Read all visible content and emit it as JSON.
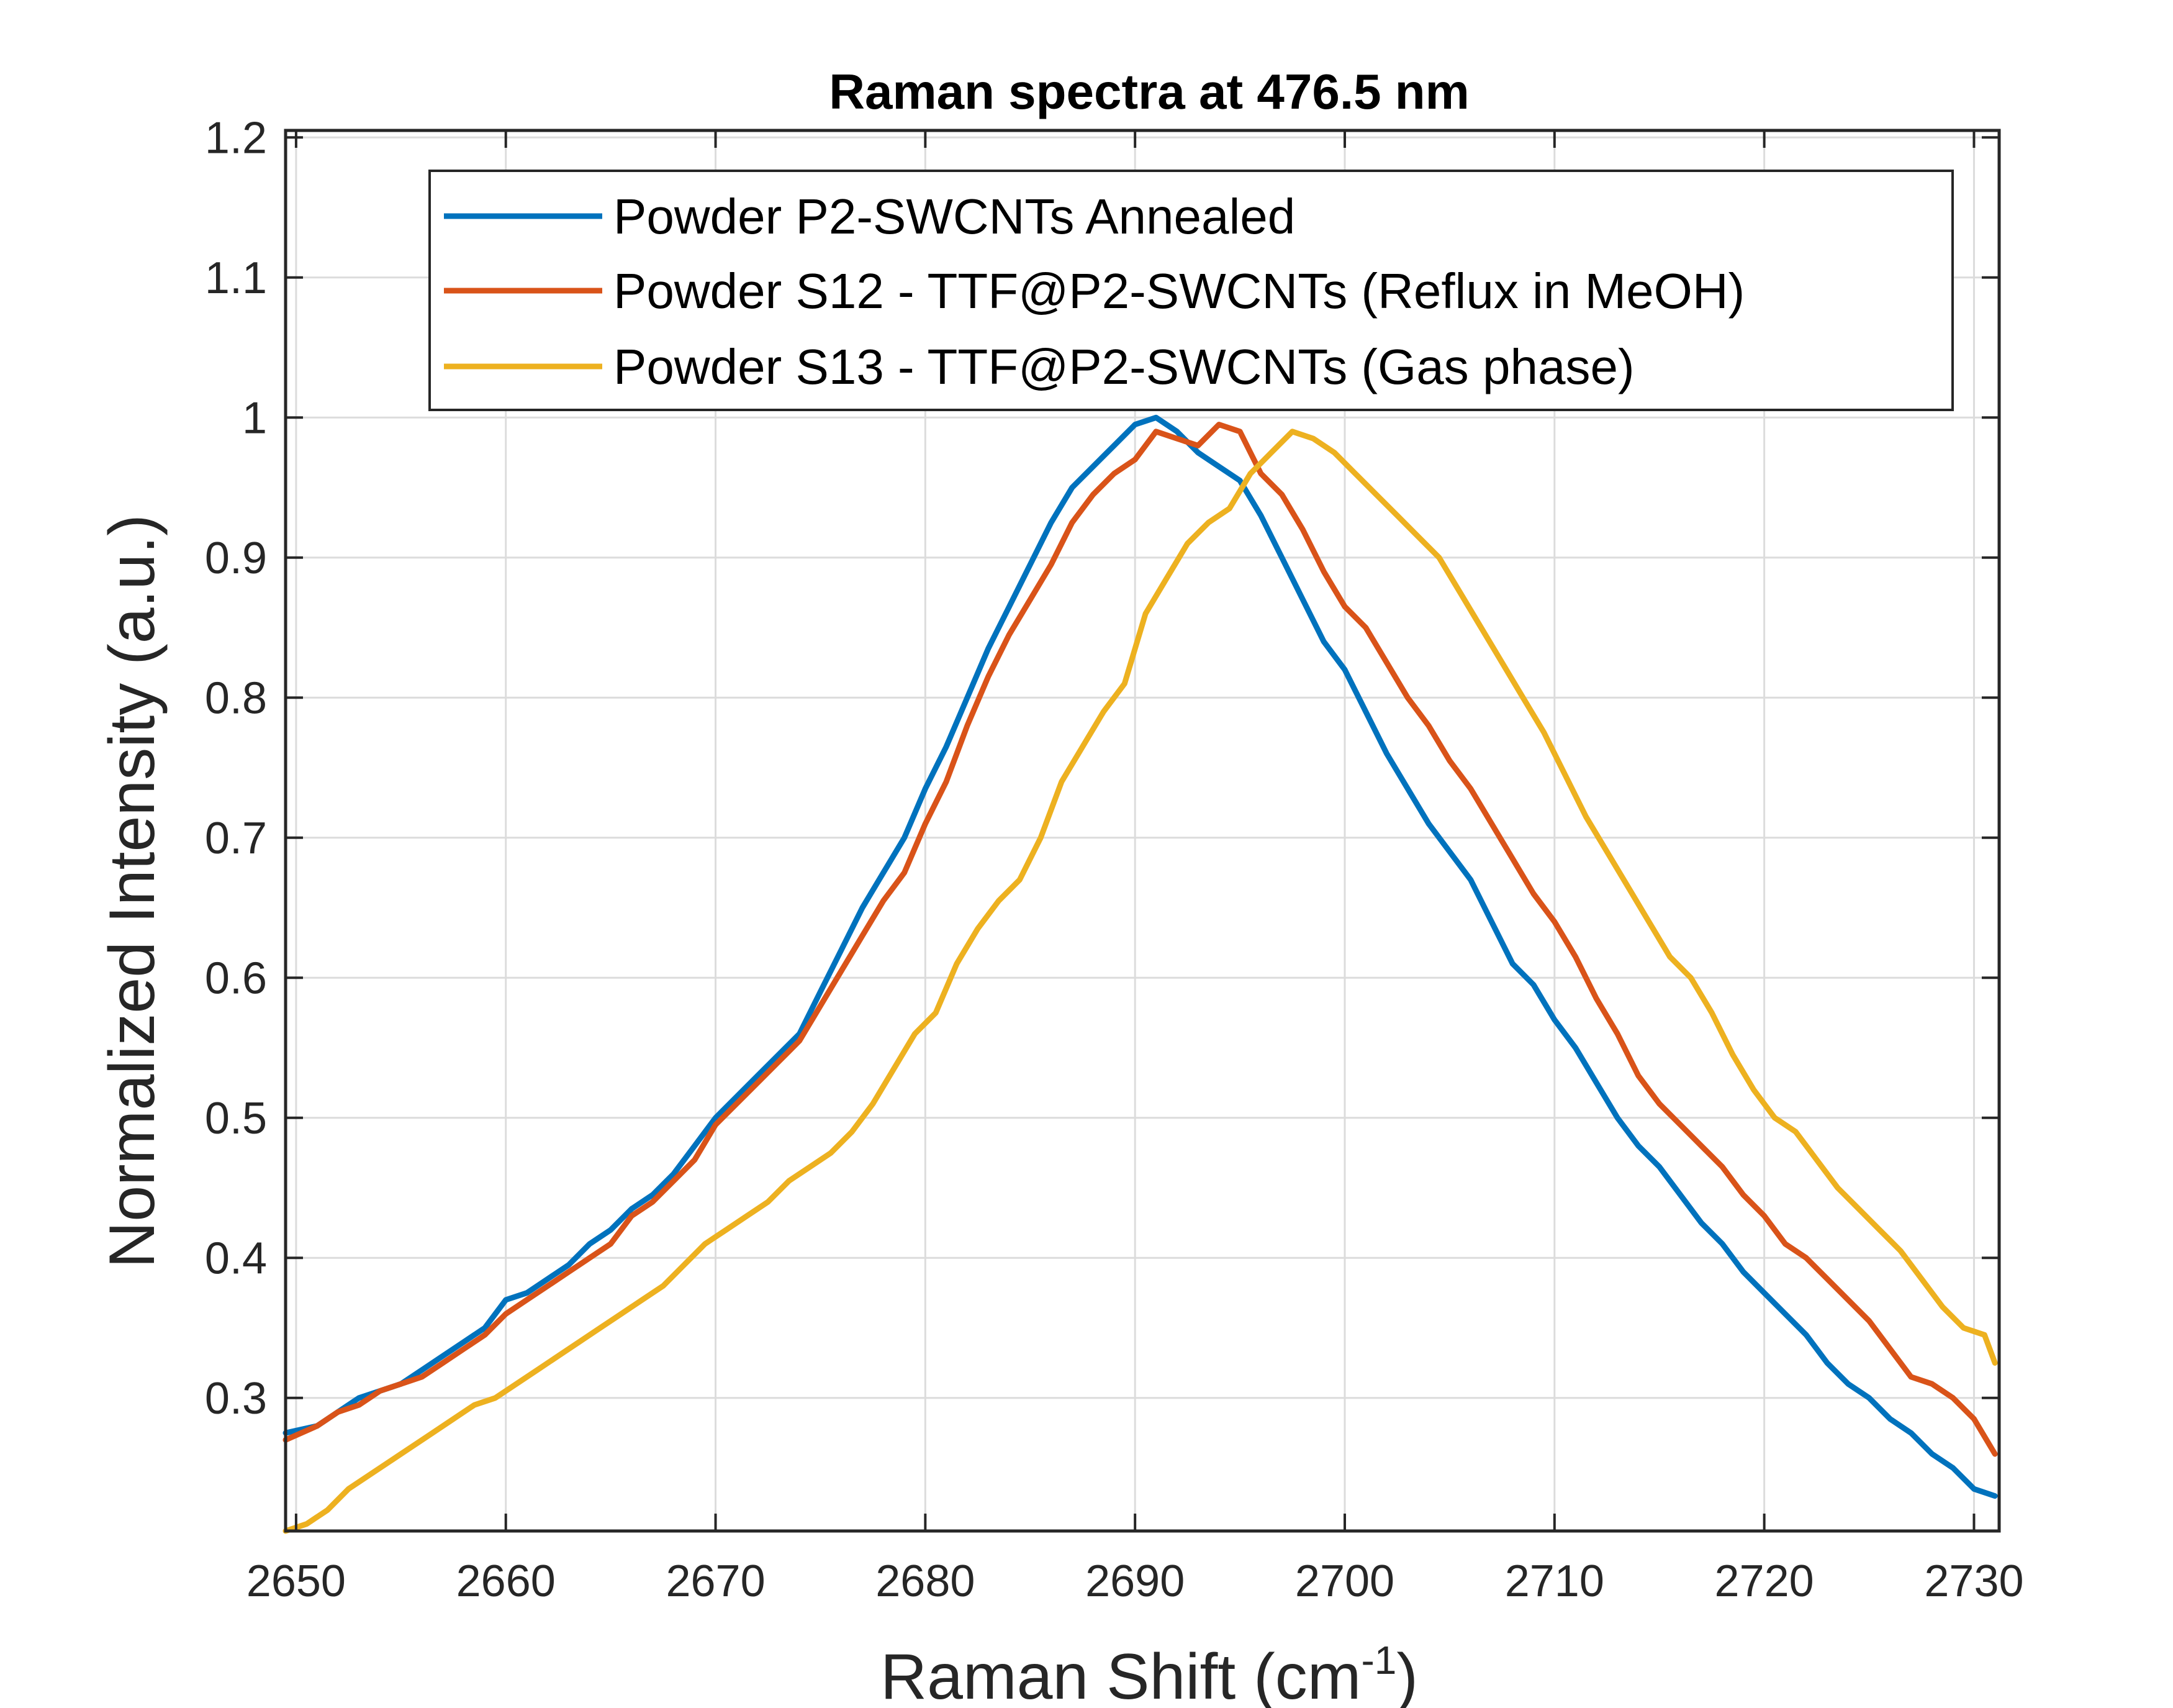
{
  "chart_data": {
    "type": "line",
    "title": "Raman spectra at 476.5 nm",
    "xlabel": "Raman Shift (cm",
    "xlabel_sup": "-1",
    "xlabel_end": ")",
    "ylabel": "Normalized Intensity (a.u.)",
    "xlim": [
      2649.5,
      2731.2
    ],
    "ylim": [
      0.205,
      1.205
    ],
    "xticks": [
      2650,
      2660,
      2670,
      2680,
      2690,
      2700,
      2710,
      2720,
      2730
    ],
    "yticks": [
      0.3,
      0.4,
      0.5,
      0.6,
      0.7,
      0.8,
      0.9,
      1,
      1.1,
      1.2
    ],
    "xtick_labels": [
      "2650",
      "2660",
      "2670",
      "2680",
      "2690",
      "2700",
      "2710",
      "2720",
      "2730"
    ],
    "ytick_labels": [
      "0.3",
      "0.4",
      "0.5",
      "0.6",
      "0.7",
      "0.8",
      "0.9",
      "1",
      "1.1",
      "1.2"
    ],
    "grid": true,
    "legend_position": "top",
    "series": [
      {
        "name": "Powder P2-SWCNTs Annealed",
        "color": "#0072BD",
        "x": [
          2649.5,
          2651,
          2652,
          2653,
          2654,
          2655,
          2656,
          2657,
          2658,
          2659,
          2660,
          2661,
          2662,
          2663,
          2664,
          2665,
          2666,
          2667,
          2668,
          2669,
          2670,
          2671,
          2672,
          2673,
          2674,
          2675,
          2676,
          2677,
          2678,
          2679,
          2680,
          2681,
          2682,
          2683,
          2684,
          2685,
          2686,
          2687,
          2688,
          2689,
          2690,
          2691,
          2692,
          2693,
          2694,
          2695,
          2696,
          2697,
          2698,
          2699,
          2700,
          2701,
          2702,
          2703,
          2704,
          2705,
          2706,
          2707,
          2708,
          2709,
          2710,
          2711,
          2712,
          2713,
          2714,
          2715,
          2716,
          2717,
          2718,
          2719,
          2720,
          2721,
          2722,
          2723,
          2724,
          2725,
          2726,
          2727,
          2728,
          2729,
          2730,
          2731
        ],
        "y": [
          0.275,
          0.28,
          0.29,
          0.3,
          0.305,
          0.31,
          0.32,
          0.33,
          0.34,
          0.35,
          0.37,
          0.375,
          0.385,
          0.395,
          0.41,
          0.42,
          0.435,
          0.445,
          0.46,
          0.48,
          0.5,
          0.515,
          0.53,
          0.545,
          0.56,
          0.59,
          0.62,
          0.65,
          0.675,
          0.7,
          0.735,
          0.765,
          0.8,
          0.835,
          0.865,
          0.895,
          0.925,
          0.95,
          0.965,
          0.98,
          0.995,
          1.0,
          0.99,
          0.975,
          0.965,
          0.955,
          0.93,
          0.9,
          0.87,
          0.84,
          0.82,
          0.79,
          0.76,
          0.735,
          0.71,
          0.69,
          0.67,
          0.64,
          0.61,
          0.595,
          0.57,
          0.55,
          0.525,
          0.5,
          0.48,
          0.465,
          0.445,
          0.425,
          0.41,
          0.39,
          0.375,
          0.36,
          0.345,
          0.325,
          0.31,
          0.3,
          0.285,
          0.275,
          0.26,
          0.25,
          0.235,
          0.23
        ]
      },
      {
        "name": "Powder S12 - TTF@P2-SWCNTs (Reflux in MeOH)",
        "color": "#D95319",
        "x": [
          2649.5,
          2651,
          2652,
          2653,
          2654,
          2655,
          2656,
          2657,
          2658,
          2659,
          2660,
          2661,
          2662,
          2663,
          2664,
          2665,
          2666,
          2667,
          2668,
          2669,
          2670,
          2671,
          2672,
          2673,
          2674,
          2675,
          2676,
          2677,
          2678,
          2679,
          2680,
          2681,
          2682,
          2683,
          2684,
          2685,
          2686,
          2687,
          2688,
          2689,
          2690,
          2691,
          2692,
          2693,
          2694,
          2695,
          2696,
          2697,
          2698,
          2699,
          2700,
          2701,
          2702,
          2703,
          2704,
          2705,
          2706,
          2707,
          2708,
          2709,
          2710,
          2711,
          2712,
          2713,
          2714,
          2715,
          2716,
          2717,
          2718,
          2719,
          2720,
          2721,
          2722,
          2723,
          2724,
          2725,
          2726,
          2727,
          2728,
          2729,
          2730,
          2731
        ],
        "y": [
          0.27,
          0.28,
          0.29,
          0.295,
          0.305,
          0.31,
          0.315,
          0.325,
          0.335,
          0.345,
          0.36,
          0.37,
          0.38,
          0.39,
          0.4,
          0.41,
          0.43,
          0.44,
          0.455,
          0.47,
          0.495,
          0.51,
          0.525,
          0.54,
          0.555,
          0.58,
          0.605,
          0.63,
          0.655,
          0.675,
          0.71,
          0.74,
          0.78,
          0.815,
          0.845,
          0.87,
          0.895,
          0.925,
          0.945,
          0.96,
          0.97,
          0.99,
          0.985,
          0.98,
          0.995,
          0.99,
          0.96,
          0.945,
          0.92,
          0.89,
          0.865,
          0.85,
          0.825,
          0.8,
          0.78,
          0.755,
          0.735,
          0.71,
          0.685,
          0.66,
          0.64,
          0.615,
          0.585,
          0.56,
          0.53,
          0.51,
          0.495,
          0.48,
          0.465,
          0.445,
          0.43,
          0.41,
          0.4,
          0.385,
          0.37,
          0.355,
          0.335,
          0.315,
          0.31,
          0.3,
          0.285,
          0.26
        ]
      },
      {
        "name": "Powder S13 - TTF@P2-SWCNTs (Gas phase)",
        "color": "#EDB120",
        "x": [
          2649.5,
          2650.5,
          2651.5,
          2652.5,
          2653.5,
          2654.5,
          2655.5,
          2656.5,
          2657.5,
          2658.5,
          2659.5,
          2660.5,
          2661.5,
          2662.5,
          2663.5,
          2664.5,
          2665.5,
          2666.5,
          2667.5,
          2668.5,
          2669.5,
          2670.5,
          2671.5,
          2672.5,
          2673.5,
          2674.5,
          2675.5,
          2676.5,
          2677.5,
          2678.5,
          2679.5,
          2680.5,
          2681.5,
          2682.5,
          2683.5,
          2684.5,
          2685.5,
          2686.5,
          2687.5,
          2688.5,
          2689.5,
          2690.5,
          2691.5,
          2692.5,
          2693.5,
          2694.5,
          2695.5,
          2696.5,
          2697.5,
          2698.5,
          2699.5,
          2700.5,
          2701.5,
          2702.5,
          2703.5,
          2704.5,
          2705.5,
          2706.5,
          2707.5,
          2708.5,
          2709.5,
          2710.5,
          2711.5,
          2712.5,
          2713.5,
          2714.5,
          2715.5,
          2716.5,
          2717.5,
          2718.5,
          2719.5,
          2720.5,
          2721.5,
          2722.5,
          2723.5,
          2724.5,
          2725.5,
          2726.5,
          2727.5,
          2728.5,
          2729.5,
          2730.5,
          2731
        ],
        "y": [
          0.205,
          0.21,
          0.22,
          0.235,
          0.245,
          0.255,
          0.265,
          0.275,
          0.285,
          0.295,
          0.3,
          0.31,
          0.32,
          0.33,
          0.34,
          0.35,
          0.36,
          0.37,
          0.38,
          0.395,
          0.41,
          0.42,
          0.43,
          0.44,
          0.455,
          0.465,
          0.475,
          0.49,
          0.51,
          0.535,
          0.56,
          0.575,
          0.61,
          0.635,
          0.655,
          0.67,
          0.7,
          0.74,
          0.765,
          0.79,
          0.81,
          0.86,
          0.885,
          0.91,
          0.925,
          0.935,
          0.96,
          0.975,
          0.99,
          0.985,
          0.975,
          0.96,
          0.945,
          0.93,
          0.915,
          0.9,
          0.875,
          0.85,
          0.825,
          0.8,
          0.775,
          0.745,
          0.715,
          0.69,
          0.665,
          0.64,
          0.615,
          0.6,
          0.575,
          0.545,
          0.52,
          0.5,
          0.49,
          0.47,
          0.45,
          0.435,
          0.42,
          0.405,
          0.385,
          0.365,
          0.35,
          0.345,
          0.325
        ]
      }
    ]
  }
}
